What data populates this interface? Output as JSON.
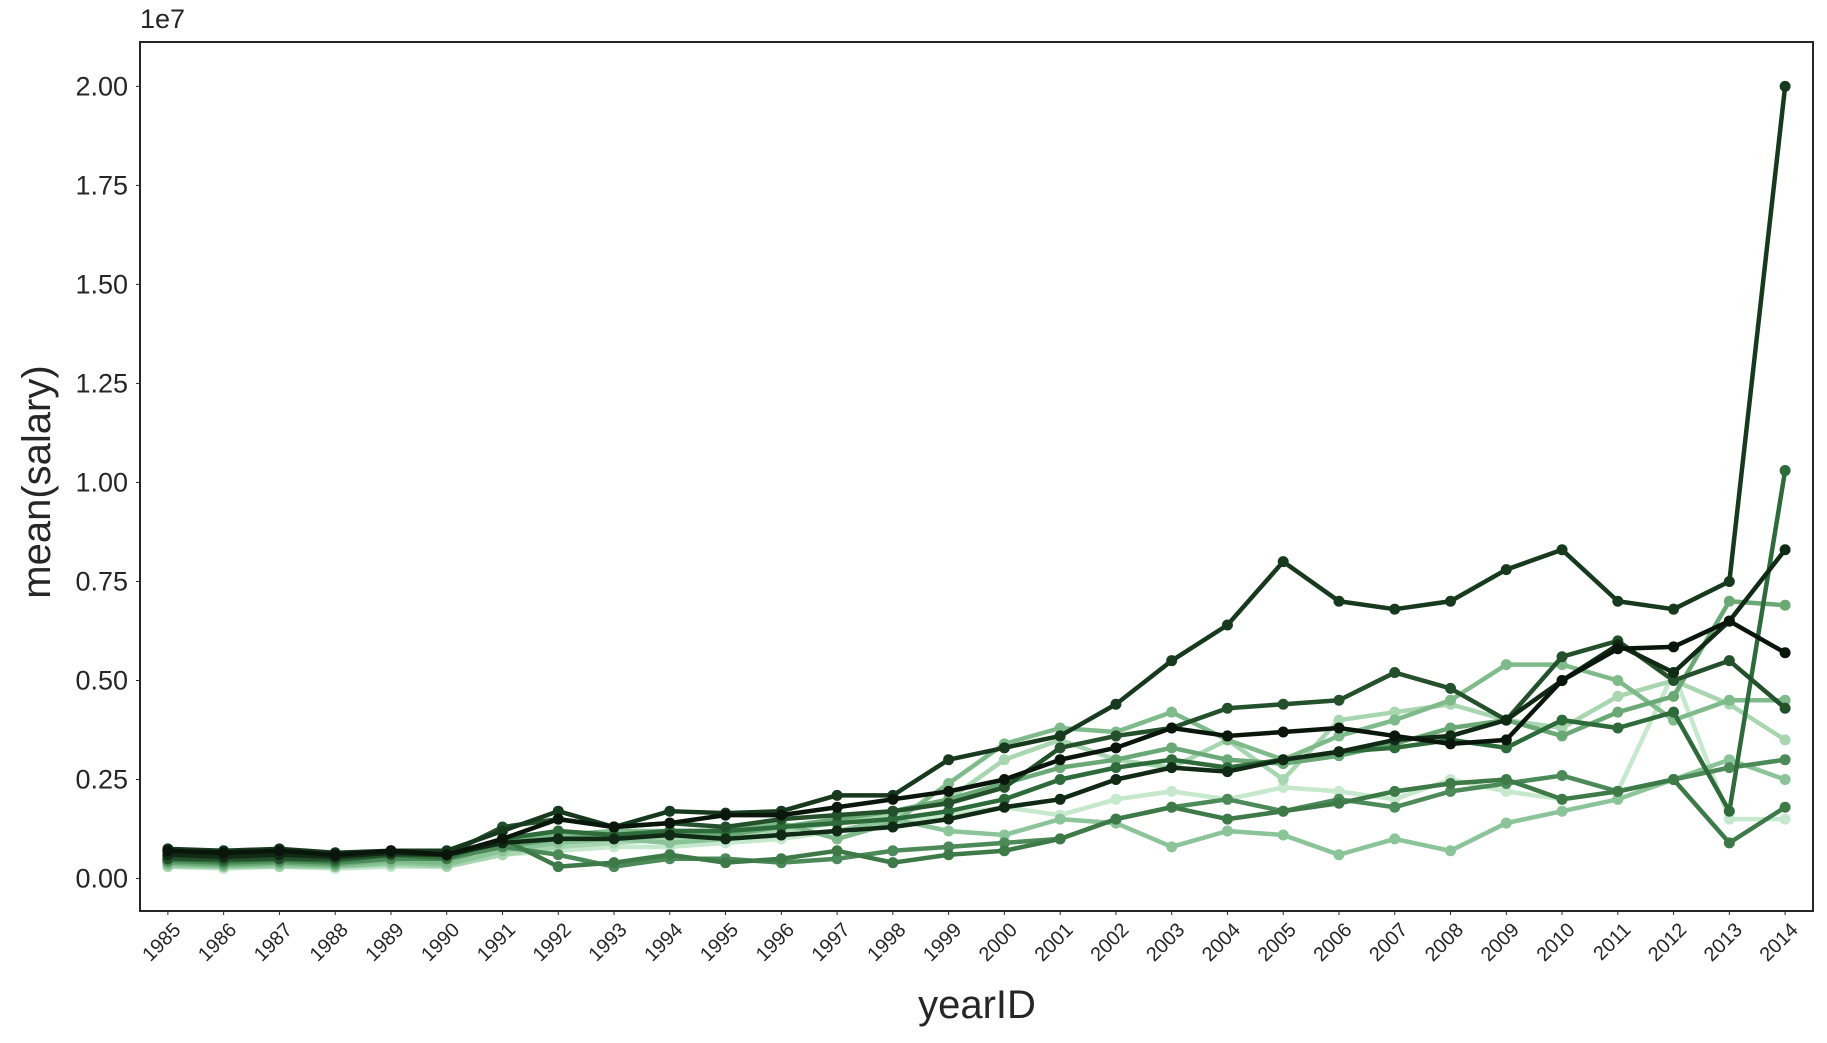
{
  "chart_data": {
    "type": "line",
    "offset_label": "1e7",
    "x_label": "yearID",
    "y_label": "mean(salary)",
    "x": [
      1985,
      1986,
      1987,
      1988,
      1989,
      1990,
      1991,
      1992,
      1993,
      1994,
      1995,
      1996,
      1997,
      1998,
      1999,
      2000,
      2001,
      2002,
      2003,
      2004,
      2005,
      2006,
      2007,
      2008,
      2009,
      2010,
      2011,
      2012,
      2013,
      2014
    ],
    "xlim": [
      1984.5,
      2014.5
    ],
    "xticks": [
      1985,
      1986,
      1987,
      1988,
      1989,
      1990,
      1991,
      1992,
      1993,
      1994,
      1995,
      1996,
      1997,
      1998,
      1999,
      2000,
      2001,
      2002,
      2003,
      2004,
      2005,
      2006,
      2007,
      2008,
      2009,
      2010,
      2011,
      2012,
      2013,
      2014
    ],
    "ylim": [
      -820000,
      21120000
    ],
    "yticks": [
      {
        "value": 0,
        "label": "0.00"
      },
      {
        "value": 2500000,
        "label": "0.25"
      },
      {
        "value": 5000000,
        "label": "0.50"
      },
      {
        "value": 7500000,
        "label": "0.75"
      },
      {
        "value": 10000000,
        "label": "1.00"
      },
      {
        "value": 12500000,
        "label": "1.25"
      },
      {
        "value": 15000000,
        "label": "1.50"
      },
      {
        "value": 17500000,
        "label": "1.75"
      },
      {
        "value": 20000000,
        "label": "2.00"
      }
    ],
    "grid": false,
    "series": [
      {
        "color": "#c6e8cc",
        "values": [
          300000,
          250000,
          300000,
          250000,
          300000,
          300000,
          600000,
          700000,
          800000,
          800000,
          900000,
          1000000,
          1200000,
          1400000,
          1600000,
          1800000,
          1600000,
          2000000,
          2200000,
          2000000,
          2300000,
          2200000,
          2000000,
          2500000,
          2200000,
          2000000,
          2200000,
          5200000,
          1500000,
          1500000
        ]
      },
      {
        "color": "#a8d6b0",
        "values": [
          300000,
          300000,
          300000,
          300000,
          350000,
          300000,
          600000,
          800000,
          900000,
          1000000,
          1000000,
          1200000,
          1400000,
          1600000,
          2000000,
          3000000,
          3500000,
          3000000,
          2800000,
          3500000,
          2500000,
          4000000,
          4200000,
          4400000,
          4000000,
          3800000,
          4600000,
          5000000,
          4400000,
          3500000
        ]
      },
      {
        "color": "#8cc49a",
        "values": [
          350000,
          300000,
          350000,
          300000,
          400000,
          350000,
          700000,
          900000,
          1000000,
          900000,
          1000000,
          1100000,
          1200000,
          1500000,
          1200000,
          1100000,
          1500000,
          1400000,
          800000,
          1200000,
          1100000,
          600000,
          1000000,
          700000,
          1400000,
          1700000,
          2000000,
          2500000,
          3000000,
          2500000
        ]
      },
      {
        "color": "#7fba8b",
        "values": [
          400000,
          350000,
          400000,
          350000,
          450000,
          400000,
          900000,
          1100000,
          1200000,
          1200000,
          1200000,
          1400000,
          1000000,
          1400000,
          2400000,
          3400000,
          3800000,
          3700000,
          4200000,
          3500000,
          3000000,
          3600000,
          4000000,
          4500000,
          5400000,
          5400000,
          5000000,
          4000000,
          4500000,
          4500000
        ]
      },
      {
        "color": "#6aa876",
        "values": [
          400000,
          350000,
          400000,
          350000,
          500000,
          500000,
          800000,
          1000000,
          1100000,
          1100000,
          1100000,
          1300000,
          1500000,
          1700000,
          2000000,
          2400000,
          2800000,
          3000000,
          3300000,
          3000000,
          2900000,
          3100000,
          3400000,
          3800000,
          4000000,
          3600000,
          4200000,
          4600000,
          7000000,
          6900000
        ]
      },
      {
        "color": "#4d8a5a",
        "values": [
          450000,
          400000,
          450000,
          400000,
          500000,
          500000,
          800000,
          600000,
          300000,
          500000,
          500000,
          400000,
          500000,
          700000,
          800000,
          900000,
          1000000,
          1500000,
          1800000,
          2000000,
          1700000,
          2000000,
          1800000,
          2200000,
          2400000,
          2600000,
          2200000,
          2500000,
          2800000,
          3000000
        ]
      },
      {
        "color": "#3d7a48",
        "values": [
          550000,
          500000,
          550000,
          500000,
          600000,
          500000,
          1000000,
          300000,
          400000,
          600000,
          400000,
          500000,
          700000,
          400000,
          600000,
          700000,
          1000000,
          1500000,
          1800000,
          1500000,
          1700000,
          1900000,
          2200000,
          2400000,
          2500000,
          2000000,
          2200000,
          2500000,
          900000,
          1800000
        ]
      },
      {
        "color": "#2e6b3a",
        "values": [
          500000,
          450000,
          500000,
          450000,
          600000,
          550000,
          1000000,
          1200000,
          1100000,
          1200000,
          1200000,
          1300000,
          1400000,
          1500000,
          1700000,
          2000000,
          2500000,
          2800000,
          3000000,
          2800000,
          3000000,
          3200000,
          3300000,
          3500000,
          3300000,
          4000000,
          3800000,
          4200000,
          1700000,
          10300000
        ]
      },
      {
        "color": "#24502c",
        "values": [
          500000,
          500000,
          500000,
          500000,
          600000,
          600000,
          1300000,
          1500000,
          1300000,
          1400000,
          1300000,
          1500000,
          1600000,
          1700000,
          1900000,
          2300000,
          3300000,
          3600000,
          3800000,
          4300000,
          4400000,
          4500000,
          5200000,
          4800000,
          4000000,
          5600000,
          6000000,
          5000000,
          5500000,
          4300000
        ]
      },
      {
        "color": "#173a1f",
        "values": [
          750000,
          700000,
          750000,
          650000,
          700000,
          700000,
          1200000,
          1700000,
          1300000,
          1700000,
          1650000,
          1700000,
          2100000,
          2100000,
          3000000,
          3300000,
          3600000,
          4400000,
          5500000,
          6400000,
          8000000,
          7000000,
          6800000,
          7000000,
          7800000,
          8300000,
          7000000,
          6800000,
          7500000,
          20000000
        ]
      },
      {
        "color": "#102a16",
        "values": [
          600000,
          550000,
          600000,
          550000,
          650000,
          600000,
          900000,
          1000000,
          1000000,
          1100000,
          1000000,
          1100000,
          1200000,
          1300000,
          1500000,
          1800000,
          2000000,
          2500000,
          2800000,
          2700000,
          3000000,
          3200000,
          3500000,
          3600000,
          4000000,
          5000000,
          5900000,
          5200000,
          6500000,
          8300000
        ]
      },
      {
        "color": "#0a160c",
        "values": [
          700000,
          650000,
          700000,
          600000,
          700000,
          600000,
          1000000,
          1500000,
          1300000,
          1400000,
          1600000,
          1600000,
          1800000,
          2000000,
          2200000,
          2500000,
          3000000,
          3300000,
          3800000,
          3600000,
          3700000,
          3800000,
          3600000,
          3400000,
          3500000,
          5000000,
          5800000,
          5850000,
          6500000,
          5700000
        ]
      }
    ]
  }
}
